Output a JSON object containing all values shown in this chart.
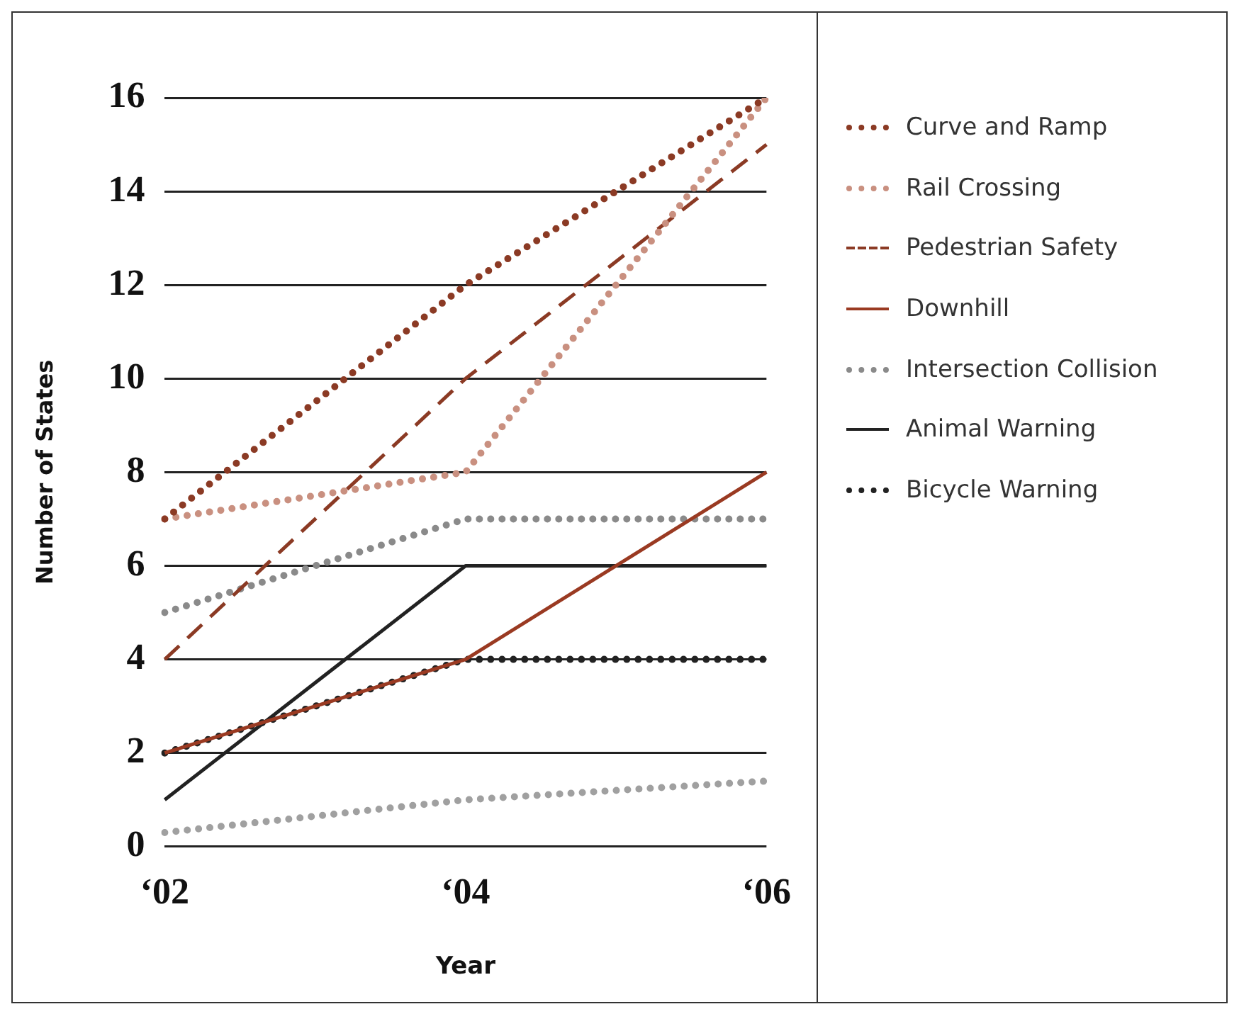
{
  "chart_data": {
    "type": "line",
    "xlabel": "Year",
    "ylabel": "Number of States",
    "categories": [
      "‘02",
      "‘04",
      "‘06"
    ],
    "ylim": [
      0,
      16
    ],
    "yticks": [
      0,
      2,
      4,
      6,
      8,
      10,
      12,
      14,
      16
    ],
    "grid": "y",
    "legend": "right",
    "series": [
      {
        "name": "Curve and Ramp",
        "color": "#8b3a24",
        "line_style": "dotted",
        "values": [
          7,
          12,
          16
        ]
      },
      {
        "name": "Rail Crossing",
        "color": "#c99080",
        "line_style": "dotted",
        "values": [
          7,
          8,
          16
        ]
      },
      {
        "name": "Pedestrian Safety",
        "color": "#8b3a24",
        "line_style": "dashed",
        "values": [
          4,
          10,
          15
        ]
      },
      {
        "name": "Downhill",
        "color": "#9a3a22",
        "line_style": "solid",
        "values": [
          2,
          4,
          8
        ]
      },
      {
        "name": "Intersection Collision",
        "color": "#8a8a8a",
        "line_style": "dotted",
        "values": [
          5,
          7,
          7
        ]
      },
      {
        "name": "Animal Warning",
        "color": "#222222",
        "line_style": "solid",
        "values": [
          1,
          6,
          6
        ]
      },
      {
        "name": "Bicycle Warning",
        "color": "#222222",
        "line_style": "dotted",
        "values": [
          2,
          4,
          4
        ]
      },
      {
        "color": "#a0a0a0",
        "line_style": "dotted",
        "values": [
          0.3,
          1,
          1.4
        ]
      }
    ]
  }
}
